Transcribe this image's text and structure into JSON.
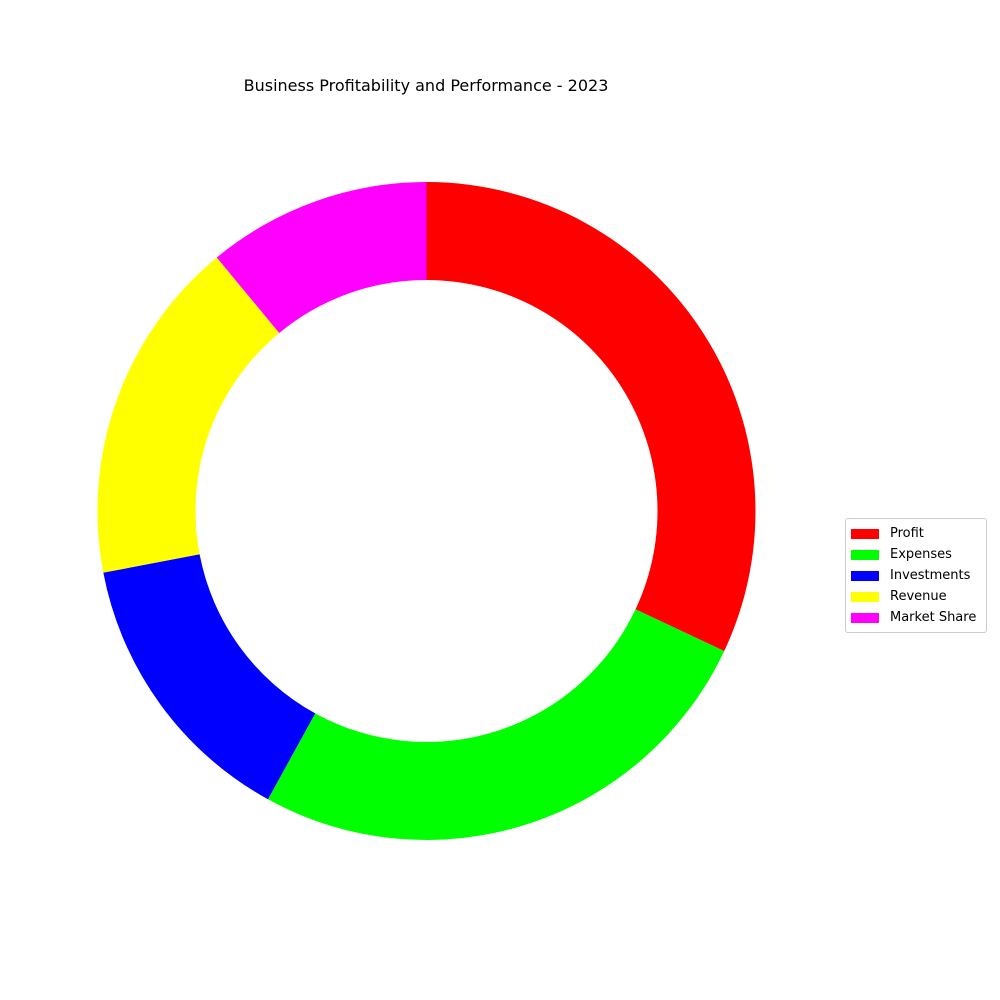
{
  "chart_data": {
    "type": "pie",
    "variant": "donut",
    "title": "Business Profitability and Performance - 2023",
    "categories": [
      "Profit",
      "Expenses",
      "Investments",
      "Revenue",
      "Market Share"
    ],
    "values": [
      32,
      26,
      14,
      17,
      11
    ],
    "colors": [
      "#ff0000",
      "#00ff00",
      "#0000ff",
      "#ffff00",
      "#ff00ff"
    ],
    "start": "top",
    "direction": "clockwise",
    "legend_position": "right"
  }
}
